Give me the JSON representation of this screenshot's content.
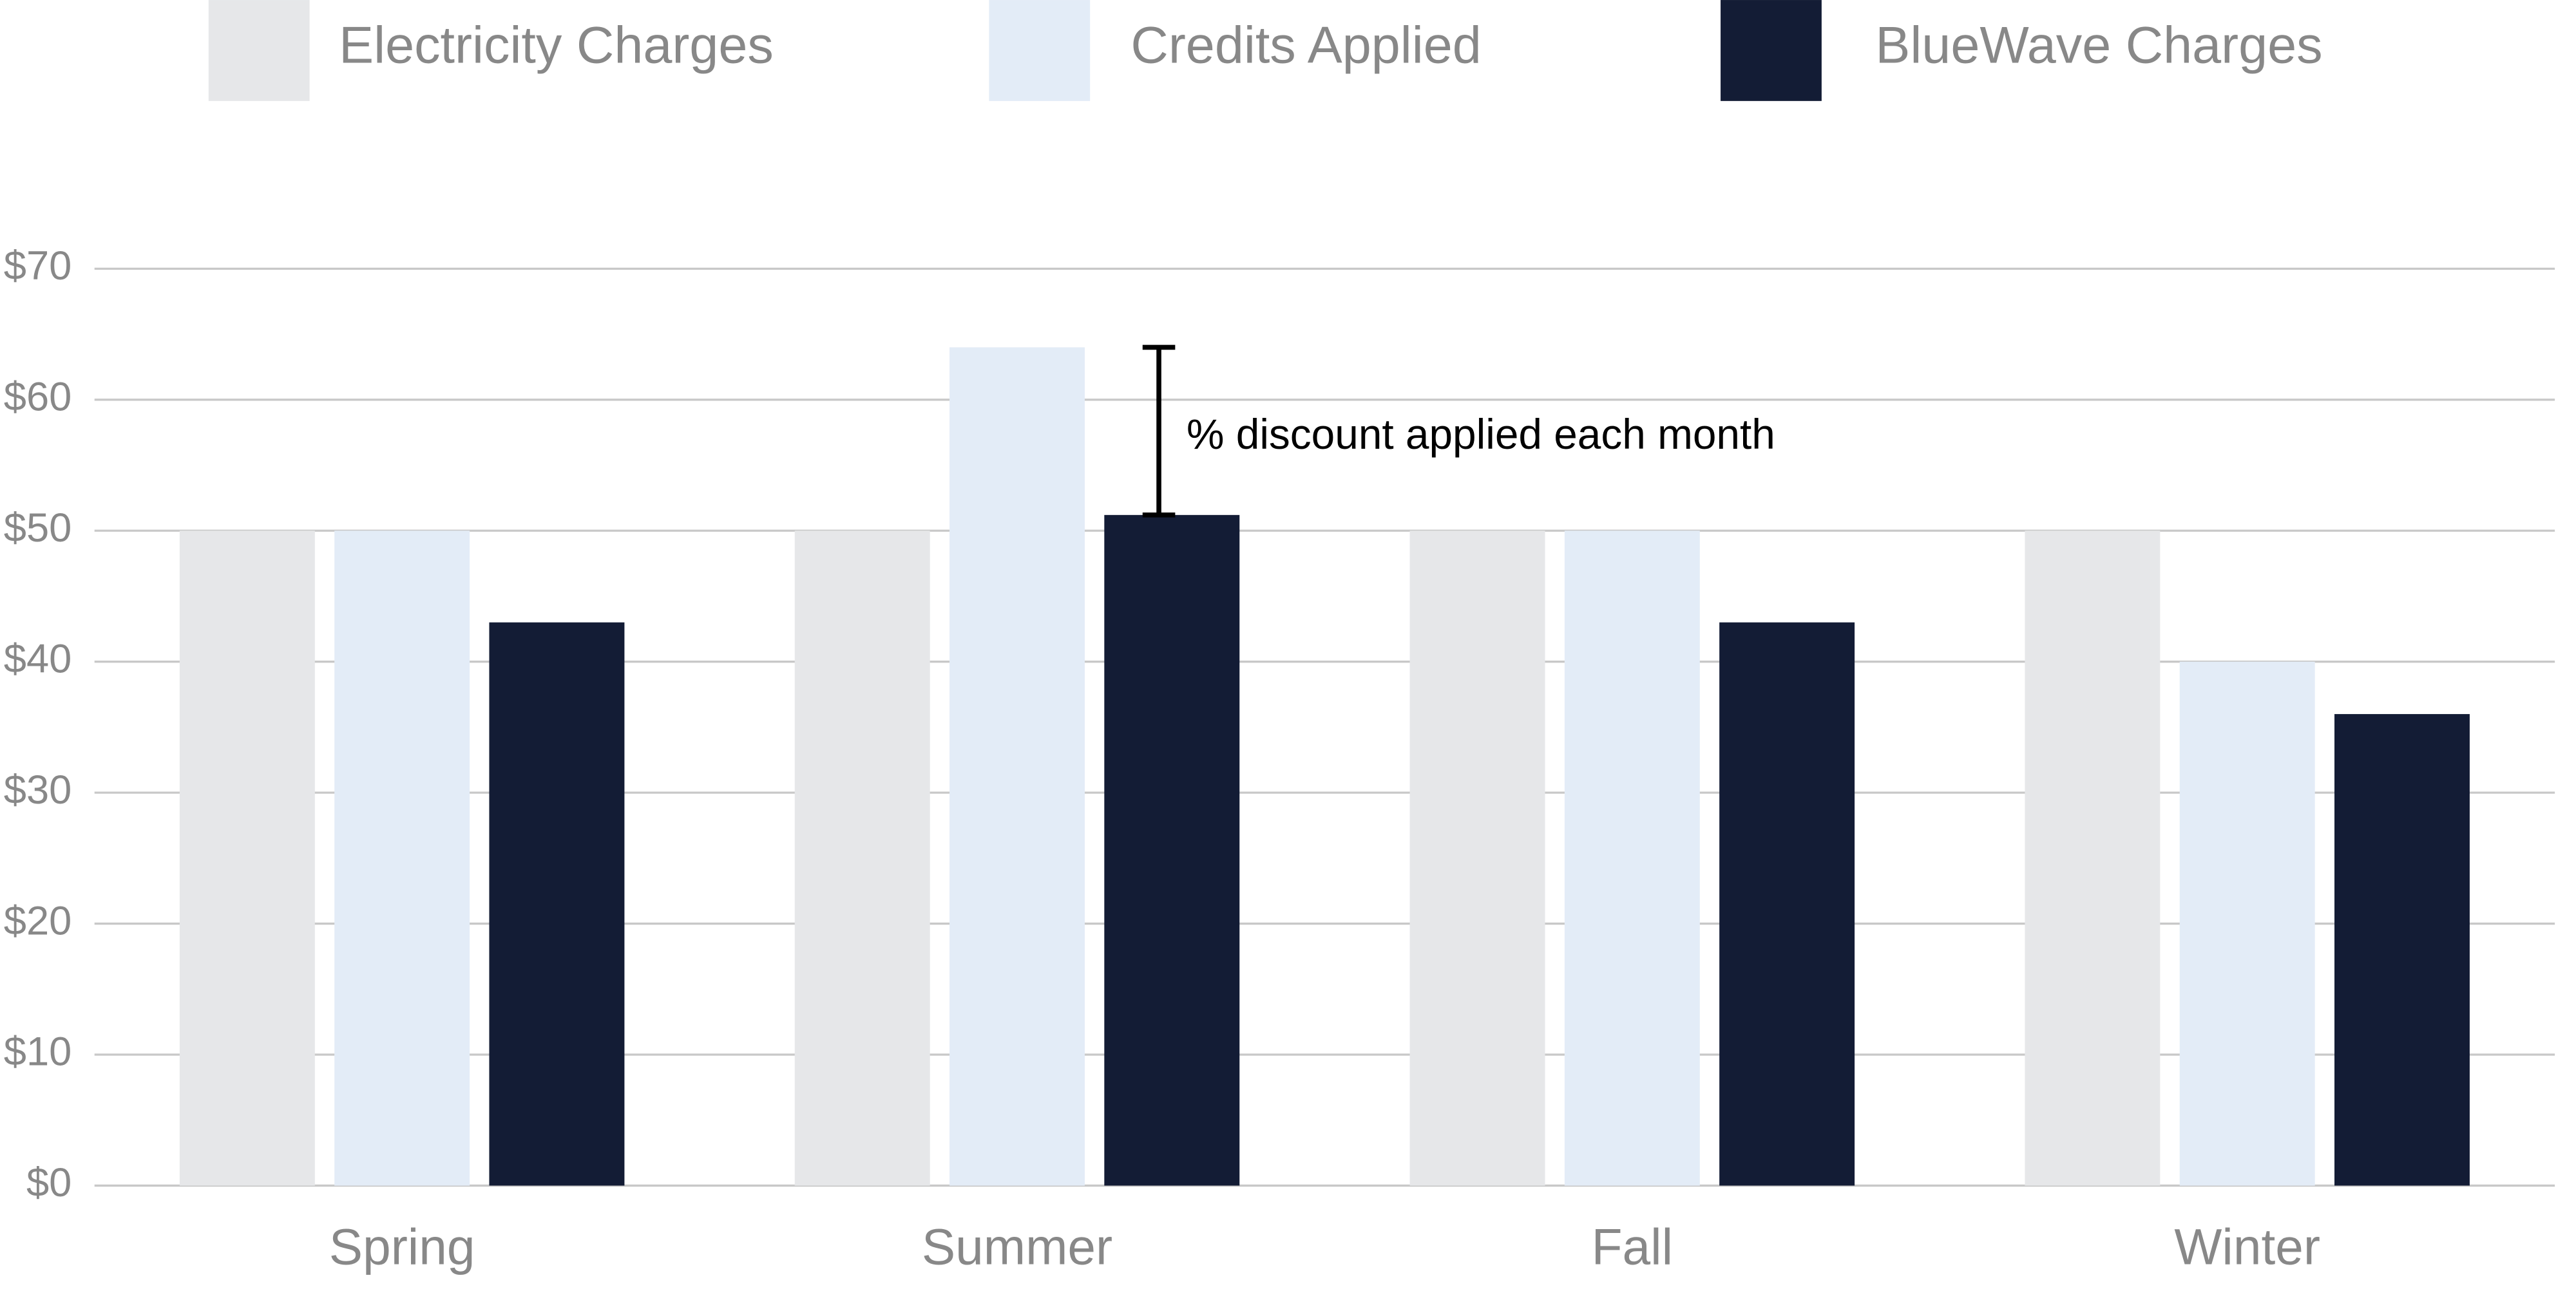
{
  "chart_data": {
    "type": "bar",
    "categories": [
      "Spring",
      "Summer",
      "Fall",
      "Winter"
    ],
    "series": [
      {
        "name": "Electricity Charges",
        "color": "#e6e7e9",
        "values": [
          50,
          50,
          50,
          50
        ]
      },
      {
        "name": "Credits Applied",
        "color": "#e3ecf7",
        "values": [
          50,
          64,
          50,
          40
        ]
      },
      {
        "name": "BlueWave Charges",
        "color": "#131c35",
        "values": [
          43,
          51.2,
          43,
          36
        ]
      }
    ],
    "ylim": [
      0,
      70
    ],
    "yticks": [
      {
        "value": 0,
        "label": "$0"
      },
      {
        "value": 10,
        "label": "$10"
      },
      {
        "value": 20,
        "label": "$20"
      },
      {
        "value": 30,
        "label": "$30"
      },
      {
        "value": 40,
        "label": "$40"
      },
      {
        "value": 50,
        "label": "$50"
      },
      {
        "value": 60,
        "label": "$60"
      },
      {
        "value": 70,
        "label": "$70"
      }
    ],
    "grid": true,
    "legend": "top",
    "annotation": "% discount applied each month"
  }
}
